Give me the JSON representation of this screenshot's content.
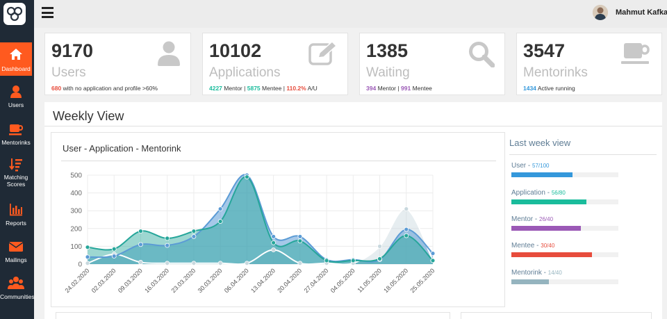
{
  "user": {
    "name": "Mahmut Kafkas"
  },
  "sidebar": {
    "items": [
      {
        "label": "Dashboard",
        "icon": "home-icon"
      },
      {
        "label": "Users",
        "icon": "user-icon"
      },
      {
        "label": "Mentorinks",
        "icon": "cup-icon"
      },
      {
        "label": "Matching Scores",
        "icon": "sort-amount-icon"
      },
      {
        "label": "Reports",
        "icon": "bar-chart-icon"
      },
      {
        "label": "Mailings",
        "icon": "envelope-icon"
      },
      {
        "label": "Communities",
        "icon": "group-icon"
      }
    ]
  },
  "cards": {
    "users": {
      "number": "9170",
      "title": "Users",
      "sub_red": "680",
      "sub_text": "with no application and profile >60%"
    },
    "applications": {
      "number": "10102",
      "title": "Applications",
      "mentor": "4227",
      "mentor_label": "Mentor",
      "mentee": "5875",
      "mentee_label": "Mentee",
      "ratio": "110.2%",
      "ratio_label": "A/U",
      "sep": "|"
    },
    "waiting": {
      "number": "1385",
      "title": "Waiting",
      "mentor": "394",
      "mentor_label": "Mentor",
      "mentee": "991",
      "mentee_label": "Mentee",
      "sep": "|"
    },
    "mentorinks": {
      "number": "3547",
      "title": "Mentorinks",
      "running": "1434",
      "running_label": "Active running"
    }
  },
  "weekly": {
    "title": "Weekly View",
    "chart_title": "User - Application - Mentorink"
  },
  "chart_data": {
    "type": "area",
    "x": [
      "24.02.2020",
      "02.03.2020",
      "09.03.2020",
      "16.03.2020",
      "23.03.2020",
      "30.03.2020",
      "06.04.2020",
      "13.04.2020",
      "20.04.2020",
      "27.04.2020",
      "04.05.2020",
      "11.05.2020",
      "18.05.2020",
      "25.05.2020"
    ],
    "ylim": [
      0,
      500
    ],
    "yticks": [
      "0",
      "100",
      "200",
      "300",
      "400",
      "500"
    ],
    "series": [
      {
        "values": [
          95,
          85,
          185,
          145,
          185,
          240,
          490,
          120,
          130,
          20,
          20,
          30,
          160,
          20
        ],
        "color": "#26a69a"
      },
      {
        "values": [
          40,
          45,
          110,
          105,
          155,
          310,
          500,
          155,
          155,
          25,
          25,
          25,
          195,
          60
        ],
        "color": "#5b9bd5"
      },
      {
        "values": [
          5,
          55,
          10,
          5,
          5,
          5,
          5,
          80,
          5,
          5,
          5,
          100,
          310,
          20
        ],
        "color": "#cfdbe0"
      }
    ]
  },
  "last_week": {
    "title": "Last week view",
    "items": [
      {
        "label": "User",
        "sep": " - ",
        "value": "57/100",
        "fraction": 0.57,
        "color": "#3498db"
      },
      {
        "label": "Application",
        "sep": " - ",
        "value": "56/80",
        "fraction": 0.7,
        "color": "#1abc9c"
      },
      {
        "label": "Mentor",
        "sep": " - ",
        "value": "26/40",
        "fraction": 0.65,
        "color": "#9b59b6"
      },
      {
        "label": "Mentee",
        "sep": " - ",
        "value": "30/40",
        "fraction": 0.75,
        "color": "#e74c3c"
      },
      {
        "label": "Mentorink",
        "sep": " - ",
        "value": "14/40",
        "fraction": 0.35,
        "color": "#95b4bf"
      }
    ]
  }
}
